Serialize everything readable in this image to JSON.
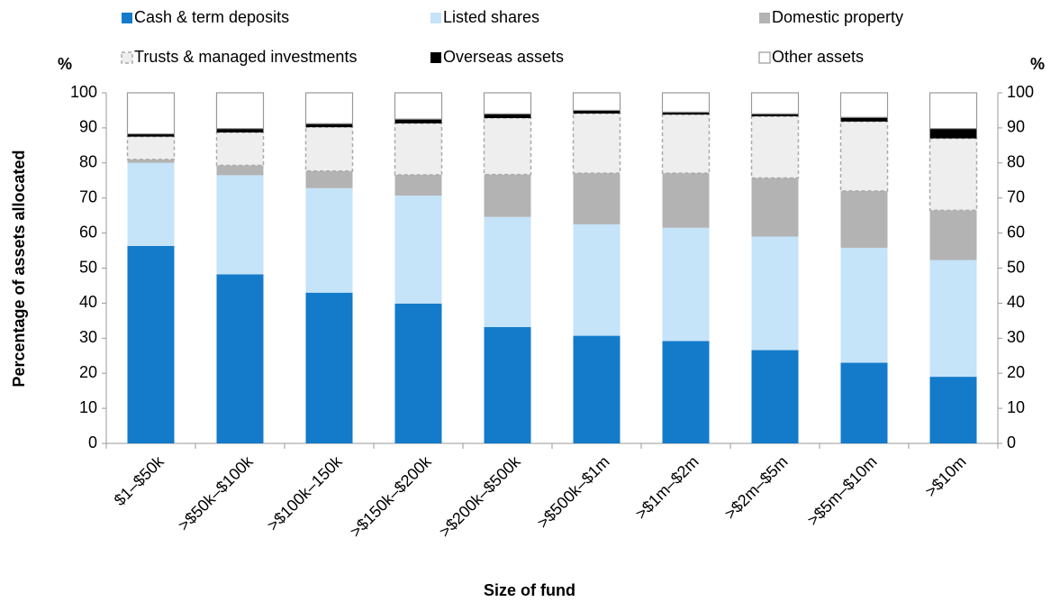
{
  "chart_data": {
    "type": "stacked_bar",
    "x_label": "Size of fund",
    "y_label": "Percentage of assets allocated",
    "y_unit": "%",
    "y2_unit": "%",
    "categories": [
      "$1–$50k",
      ">$50k–$100k",
      ">$100k–150k",
      ">$150k–$200k",
      ">$200k–$500k",
      ">$500k–$1m",
      ">$1m–$2m",
      ">$2m–$5m",
      ">$5m–$10m",
      ">$10m"
    ],
    "series": [
      {
        "name": "Cash & term deposits",
        "color": "#137bca",
        "values": [
          56.3,
          48.2,
          43.0,
          39.9,
          33.2,
          30.7,
          29.2,
          26.6,
          23.0,
          19.0
        ]
      },
      {
        "name": "Listed shares",
        "color": "#c5e3f9",
        "values": [
          23.7,
          28.3,
          29.8,
          30.8,
          31.4,
          31.8,
          32.3,
          32.4,
          32.8,
          33.3
        ]
      },
      {
        "name": "Domestic property",
        "color": "#b3b3b3",
        "values": [
          1.0,
          2.8,
          4.9,
          5.9,
          12.1,
          14.6,
          15.6,
          16.7,
          16.2,
          14.2
        ]
      },
      {
        "name": "Trusts & managed investments",
        "color": "#eeeeee",
        "values": [
          6.5,
          9.4,
          12.5,
          14.7,
          16.1,
          17.0,
          16.7,
          17.6,
          19.8,
          20.5
        ]
      },
      {
        "name": "Overseas assets",
        "color": "#000000",
        "values": [
          0.8,
          1.1,
          1.0,
          1.2,
          1.2,
          0.9,
          0.7,
          0.7,
          1.2,
          2.8
        ]
      },
      {
        "name": "Other assets",
        "color": "#ffffff",
        "values": [
          11.7,
          10.2,
          8.8,
          7.5,
          6.0,
          5.0,
          5.5,
          6.0,
          7.0,
          10.2
        ]
      }
    ],
    "ylim": [
      0,
      100
    ],
    "yticks": [
      0,
      10,
      20,
      30,
      40,
      50,
      60,
      70,
      80,
      90,
      100
    ],
    "y2lim": [
      0,
      100
    ],
    "y2ticks": [
      0,
      10,
      20,
      30,
      40,
      50,
      60,
      70,
      80,
      90,
      100
    ],
    "grid": false
  }
}
